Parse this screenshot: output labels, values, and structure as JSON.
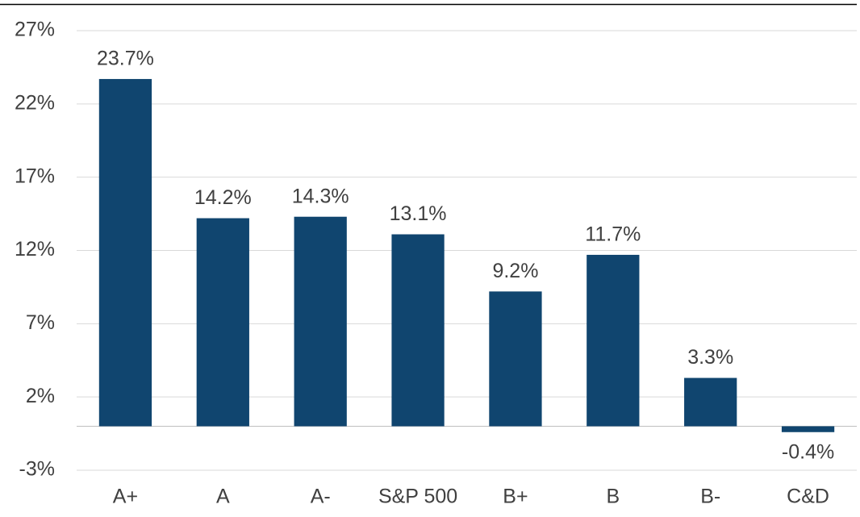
{
  "chart_data": {
    "type": "bar",
    "categories": [
      "A+",
      "A",
      "A-",
      "S&P 500",
      "B+",
      "B",
      "B-",
      "C&D"
    ],
    "values": [
      23.7,
      14.2,
      14.3,
      13.1,
      9.2,
      11.7,
      3.3,
      -0.4
    ],
    "value_labels": [
      "23.7%",
      "14.2%",
      "14.3%",
      "13.1%",
      "9.2%",
      "11.7%",
      "3.3%",
      "-0.4%"
    ],
    "color": "#10456f",
    "ylim": [
      -3,
      27
    ],
    "yticks": [
      {
        "value": -3,
        "label": "-3%"
      },
      {
        "value": 2,
        "label": "2%"
      },
      {
        "value": 7,
        "label": "7%"
      },
      {
        "value": 12,
        "label": "12%"
      },
      {
        "value": 17,
        "label": "17%"
      },
      {
        "value": 22,
        "label": "22%"
      },
      {
        "value": 27,
        "label": "27%"
      }
    ],
    "grid": true
  }
}
